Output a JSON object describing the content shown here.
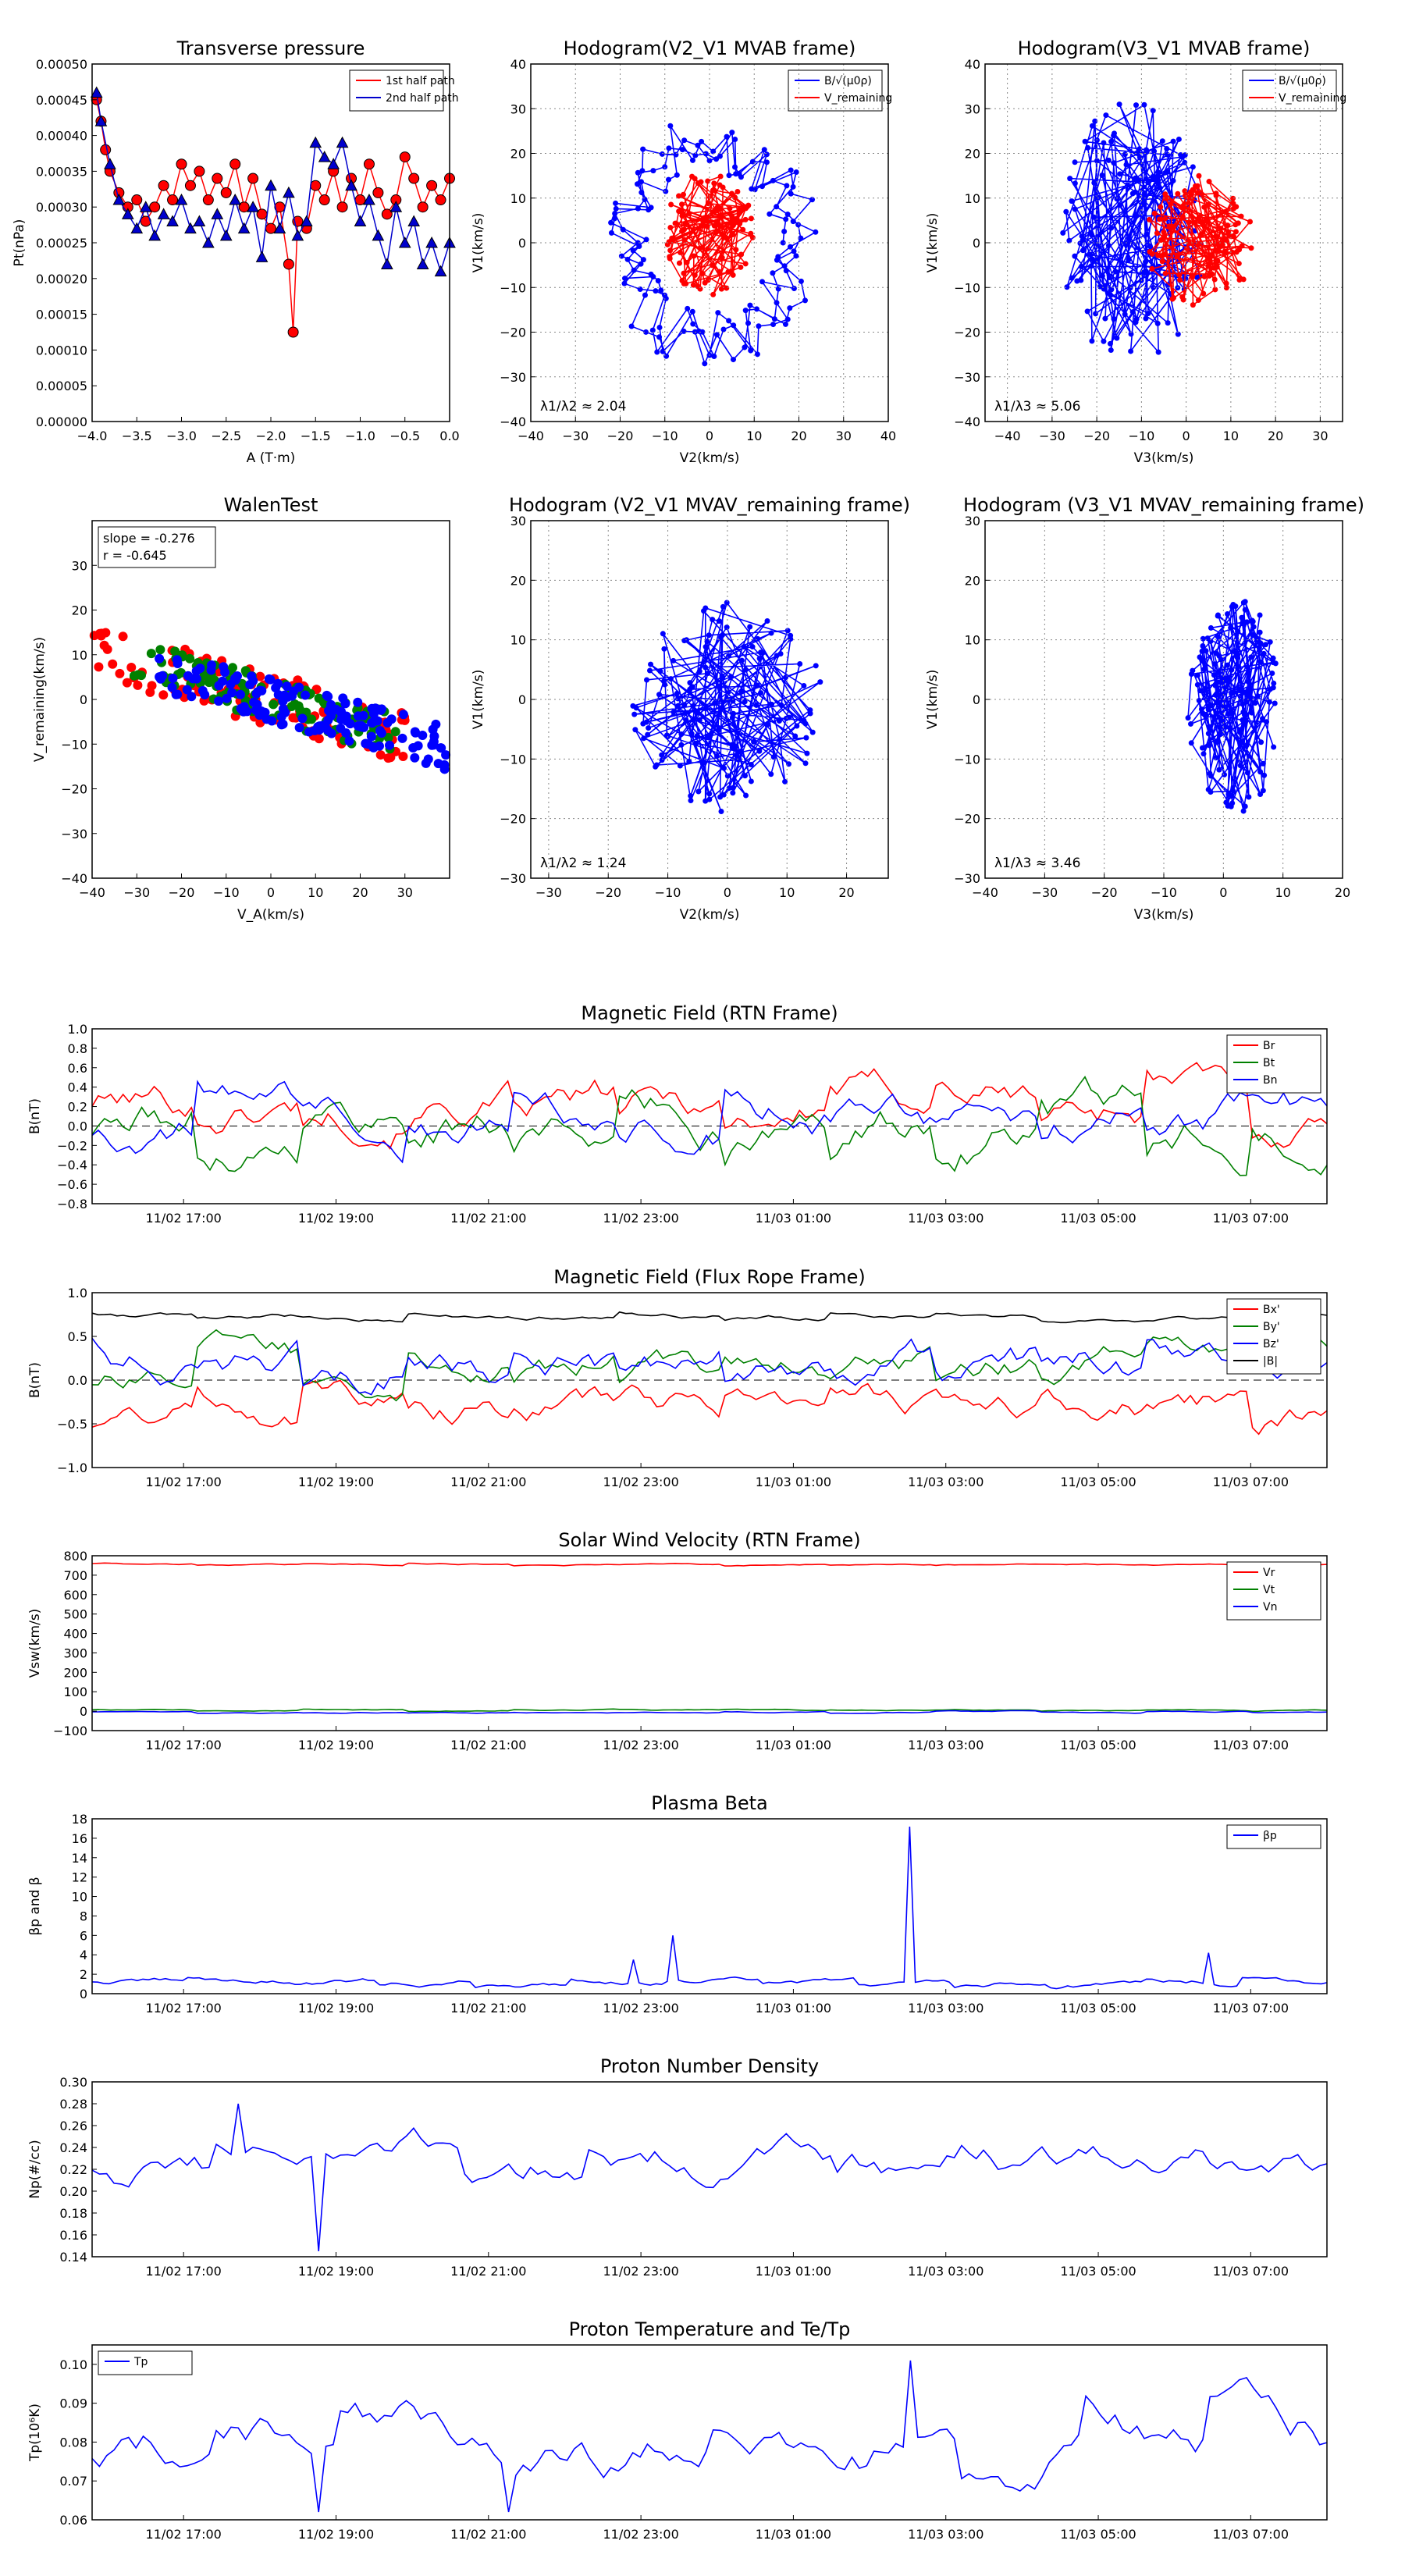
{
  "chart_data": [
    {
      "id": "p1",
      "type": "line",
      "title": "Transverse pressure",
      "xlabel": "A (T·m)",
      "ylabel": "Pt(nPa)",
      "xlim": [
        -4.0,
        0.0
      ],
      "ylim": [
        0.0,
        0.0005
      ],
      "xticks": [
        -4.0,
        -3.5,
        -3.0,
        -2.5,
        -2.0,
        -1.5,
        -1.0,
        -0.5,
        0.0
      ],
      "xtick_labels": [
        "−4.0",
        "−3.5",
        "−3.0",
        "−2.5",
        "−2.0",
        "−1.5",
        "−1.0",
        "−0.5",
        "0.0"
      ],
      "yticks": [
        0,
        5e-05,
        0.0001,
        0.00015,
        0.0002,
        0.00025,
        0.0003,
        0.00035,
        0.0004,
        0.00045,
        0.0005
      ],
      "ytick_labels": [
        "0.00000",
        "0.00005",
        "0.00010",
        "0.00015",
        "0.00020",
        "0.00025",
        "0.00030",
        "0.00035",
        "0.00040",
        "0.00045",
        "0.00050"
      ],
      "grid": false,
      "legend_position": "top-right",
      "series": [
        {
          "name": "1st half path",
          "color": "#ff0000",
          "marker": "circle",
          "x": [
            -3.95,
            -3.9,
            -3.85,
            -3.8,
            -3.7,
            -3.6,
            -3.5,
            -3.4,
            -3.3,
            -3.2,
            -3.1,
            -3.0,
            -2.9,
            -2.8,
            -2.7,
            -2.6,
            -2.5,
            -2.4,
            -2.3,
            -2.2,
            -2.1,
            -2.0,
            -1.9,
            -1.8,
            -1.75,
            -1.7,
            -1.6,
            -1.5,
            -1.4,
            -1.3,
            -1.2,
            -1.1,
            -1.0,
            -0.9,
            -0.8,
            -0.7,
            -0.6,
            -0.5,
            -0.4,
            -0.3,
            -0.2,
            -0.1,
            0.0
          ],
          "y": [
            0.00045,
            0.00042,
            0.00038,
            0.00035,
            0.00032,
            0.0003,
            0.00031,
            0.00028,
            0.0003,
            0.00033,
            0.00031,
            0.00036,
            0.00033,
            0.00035,
            0.00031,
            0.00034,
            0.00032,
            0.00036,
            0.0003,
            0.00034,
            0.00029,
            0.00027,
            0.0003,
            0.00022,
            0.000125,
            0.00028,
            0.00027,
            0.00033,
            0.00031,
            0.00035,
            0.0003,
            0.00034,
            0.00031,
            0.00036,
            0.00032,
            0.00029,
            0.00031,
            0.00037,
            0.00034,
            0.0003,
            0.00033,
            0.00031,
            0.00034
          ]
        },
        {
          "name": "2nd half path",
          "color": "#0000cc",
          "marker": "triangle",
          "x": [
            -3.95,
            -3.9,
            -3.8,
            -3.7,
            -3.6,
            -3.5,
            -3.4,
            -3.3,
            -3.2,
            -3.1,
            -3.0,
            -2.9,
            -2.8,
            -2.7,
            -2.6,
            -2.5,
            -2.4,
            -2.3,
            -2.2,
            -2.1,
            -2.0,
            -1.9,
            -1.8,
            -1.7,
            -1.6,
            -1.5,
            -1.4,
            -1.3,
            -1.2,
            -1.1,
            -1.0,
            -0.9,
            -0.8,
            -0.7,
            -0.6,
            -0.5,
            -0.4,
            -0.3,
            -0.2,
            -0.1,
            0.0
          ],
          "y": [
            0.00046,
            0.00042,
            0.00036,
            0.00031,
            0.00029,
            0.00027,
            0.0003,
            0.00026,
            0.00029,
            0.00028,
            0.00031,
            0.00027,
            0.00028,
            0.00025,
            0.00029,
            0.00026,
            0.00031,
            0.00027,
            0.0003,
            0.00023,
            0.00033,
            0.00027,
            0.00032,
            0.00026,
            0.00028,
            0.00039,
            0.00037,
            0.00036,
            0.00039,
            0.00033,
            0.00028,
            0.00031,
            0.00026,
            0.00022,
            0.0003,
            0.00025,
            0.00028,
            0.00022,
            0.00025,
            0.00021,
            0.00025
          ]
        }
      ]
    },
    {
      "id": "p2",
      "type": "line",
      "title": "Hodogram(V2_V1 MVAB frame)",
      "xlabel": "V2(km/s)",
      "ylabel": "V1(km/s)",
      "xlim": [
        -40,
        40
      ],
      "ylim": [
        -40,
        40
      ],
      "xticks": [
        -40,
        -30,
        -20,
        -10,
        0,
        10,
        20,
        30,
        40
      ],
      "yticks": [
        -40,
        -30,
        -20,
        -10,
        0,
        10,
        20,
        30,
        40
      ],
      "xtick_labels": [
        "−40",
        "−30",
        "−20",
        "−10",
        "0",
        "10",
        "20",
        "30",
        "40"
      ],
      "ytick_labels": [
        "−40",
        "−30",
        "−20",
        "−10",
        "0",
        "10",
        "20",
        "30",
        "40"
      ],
      "grid": true,
      "legend_position": "top-right",
      "annotation": "λ1/λ2 ≈ 2.04",
      "series": [
        {
          "name": "B/√(μ0ρ)",
          "color": "#0000ff",
          "kind": "loop",
          "cx": 0,
          "cy": 0,
          "rx": 25,
          "ry": 28,
          "n": 140,
          "seed": 11
        },
        {
          "name": "V_remaining",
          "color": "#ff0000",
          "kind": "cloud",
          "cx": 0,
          "cy": 2,
          "rx": 10,
          "ry": 14,
          "n": 110,
          "seed": 23
        }
      ]
    },
    {
      "id": "p3",
      "type": "line",
      "title": "Hodogram(V3_V1 MVAB frame)",
      "xlabel": "V3(km/s)",
      "ylabel": "V1(km/s)",
      "xlim": [
        -45,
        35
      ],
      "ylim": [
        -40,
        40
      ],
      "xticks": [
        -40,
        -30,
        -20,
        -10,
        0,
        10,
        20,
        30
      ],
      "yticks": [
        -40,
        -30,
        -20,
        -10,
        0,
        10,
        20,
        30,
        40
      ],
      "xtick_labels": [
        "−40",
        "−30",
        "−20",
        "−10",
        "0",
        "10",
        "20",
        "30"
      ],
      "ytick_labels": [
        "−40",
        "−30",
        "−20",
        "−10",
        "0",
        "10",
        "20",
        "30",
        "40"
      ],
      "grid": true,
      "legend_position": "top-right",
      "annotation": "λ1/λ3 ≈ 5.06",
      "series": [
        {
          "name": "B/√(μ0ρ)",
          "color": "#0000ff",
          "kind": "cloud",
          "cx": -12,
          "cy": 2,
          "rx": 16,
          "ry": 30,
          "n": 150,
          "seed": 31
        },
        {
          "name": "V_remaining",
          "color": "#ff0000",
          "kind": "cloud",
          "cx": 3,
          "cy": 0,
          "rx": 12,
          "ry": 15,
          "n": 110,
          "seed": 41
        }
      ]
    },
    {
      "id": "p4",
      "type": "scatter",
      "title": "WalenTest",
      "xlabel": "V_A(km/s)",
      "ylabel": "V_remaining(km/s)",
      "xlim": [
        -40,
        40
      ],
      "ylim": [
        -40,
        40
      ],
      "xticks": [
        -40,
        -30,
        -20,
        -10,
        0,
        10,
        20,
        30
      ],
      "yticks": [
        -40,
        -30,
        -20,
        -10,
        0,
        10,
        20,
        30
      ],
      "xtick_labels": [
        "−40",
        "−30",
        "−20",
        "−10",
        "0",
        "10",
        "20",
        "30"
      ],
      "ytick_labels": [
        "−40",
        "−30",
        "−20",
        "−10",
        "0",
        "10",
        "20",
        "30"
      ],
      "grid": false,
      "annotation_lines": [
        "slope = -0.276",
        "r = -0.645"
      ],
      "slope": -0.276,
      "series": [
        {
          "color": "#ff0000",
          "xrange": [
            -40,
            30
          ],
          "n": 110,
          "seed": 51,
          "spread": 6
        },
        {
          "color": "#008000",
          "xrange": [
            -32,
            28
          ],
          "n": 110,
          "seed": 61,
          "spread": 5
        },
        {
          "color": "#0000ff",
          "xrange": [
            -25,
            40
          ],
          "n": 150,
          "seed": 71,
          "spread": 5
        }
      ]
    },
    {
      "id": "p5",
      "type": "line",
      "title": "Hodogram (V2_V1 MVAV_remaining frame)",
      "xlabel": "V2(km/s)",
      "ylabel": "V1(km/s)",
      "xlim": [
        -33,
        27
      ],
      "ylim": [
        -30,
        30
      ],
      "xticks": [
        -30,
        -20,
        -10,
        0,
        10,
        20
      ],
      "yticks": [
        -30,
        -20,
        -10,
        0,
        10,
        20,
        30
      ],
      "xtick_labels": [
        "−30",
        "−20",
        "−10",
        "0",
        "10",
        "20"
      ],
      "ytick_labels": [
        "−30",
        "−20",
        "−10",
        "0",
        "10",
        "20",
        "30"
      ],
      "grid": true,
      "annotation": "λ1/λ2 ≈ 1.24",
      "series": [
        {
          "color": "#0000ff",
          "kind": "cloud",
          "cx": 0,
          "cy": -1,
          "rx": 16,
          "ry": 18,
          "n": 150,
          "seed": 81
        }
      ]
    },
    {
      "id": "p6",
      "type": "line",
      "title": "Hodogram (V3_V1 MVAV_remaining frame)",
      "xlabel": "V3(km/s)",
      "ylabel": "V1(km/s)",
      "xlim": [
        -40,
        20
      ],
      "ylim": [
        -30,
        30
      ],
      "xticks": [
        -40,
        -30,
        -20,
        -10,
        0,
        10,
        20
      ],
      "yticks": [
        -30,
        -20,
        -10,
        0,
        10,
        20,
        30
      ],
      "xtick_labels": [
        "−40",
        "−30",
        "−20",
        "−10",
        "0",
        "10",
        "20"
      ],
      "ytick_labels": [
        "−30",
        "−20",
        "−10",
        "0",
        "10",
        "20",
        "30"
      ],
      "grid": true,
      "annotation": "λ1/λ3 ≈ 3.46",
      "series": [
        {
          "color": "#0000ff",
          "kind": "cloud",
          "cx": 2,
          "cy": -1,
          "rx": 8,
          "ry": 18,
          "n": 150,
          "seed": 91
        }
      ]
    },
    {
      "id": "ts1",
      "type": "line",
      "title": "Magnetic Field (RTN Frame)",
      "ylabel": "B(nT)",
      "ylim": [
        -0.8,
        1.0
      ],
      "yticks": [
        -0.8,
        -0.6,
        -0.4,
        -0.2,
        0.0,
        0.2,
        0.4,
        0.6,
        0.8,
        1.0
      ],
      "ytick_labels": [
        "−0.8",
        "−0.6",
        "−0.4",
        "−0.2",
        "0.0",
        "0.2",
        "0.4",
        "0.6",
        "0.8",
        "1.0"
      ],
      "zero_line": true,
      "legend_position": "top-right",
      "series": [
        {
          "name": "Br",
          "color": "#ff0000",
          "base": 0.25,
          "amp": 0.4,
          "seed": 101,
          "n": 200
        },
        {
          "name": "Bt",
          "color": "#008000",
          "base": 0.05,
          "amp": 0.45,
          "seed": 111,
          "n": 200
        },
        {
          "name": "Bn",
          "color": "#0000ff",
          "base": 0.1,
          "amp": 0.4,
          "seed": 121,
          "n": 200
        }
      ]
    },
    {
      "id": "ts2",
      "type": "line",
      "title": "Magnetic Field (Flux Rope Frame)",
      "ylabel": "B(nT)",
      "ylim": [
        -1.0,
        1.0
      ],
      "yticks": [
        -1.0,
        -0.5,
        0.0,
        0.5,
        1.0
      ],
      "ytick_labels": [
        "−1.0",
        "−0.5",
        "0.0",
        "0.5",
        "1.0"
      ],
      "zero_line": true,
      "legend_position": "top-right",
      "series": [
        {
          "name": "Bx'",
          "color": "#ff0000",
          "base": -0.3,
          "amp": 0.35,
          "seed": 131,
          "n": 200
        },
        {
          "name": "By'",
          "color": "#008000",
          "base": 0.25,
          "amp": 0.35,
          "seed": 141,
          "n": 200
        },
        {
          "name": "Bz'",
          "color": "#0000ff",
          "base": 0.1,
          "amp": 0.4,
          "seed": 151,
          "n": 200
        },
        {
          "name": "|B|",
          "color": "#000000",
          "base": 0.72,
          "amp": 0.06,
          "seed": 161,
          "n": 200
        }
      ]
    },
    {
      "id": "ts3",
      "type": "line",
      "title": "Solar Wind Velocity (RTN Frame)",
      "ylabel": "Vsw(km/s)",
      "ylim": [
        -100,
        800
      ],
      "yticks": [
        -100,
        0,
        100,
        200,
        300,
        400,
        500,
        600,
        700,
        800
      ],
      "ytick_labels": [
        "−100",
        "0",
        "100",
        "200",
        "300",
        "400",
        "500",
        "600",
        "700",
        "800"
      ],
      "legend_position": "top-right",
      "series": [
        {
          "name": "Vr",
          "color": "#ff0000",
          "base": 755,
          "amp": 8,
          "seed": 171,
          "n": 200
        },
        {
          "name": "Vt",
          "color": "#008000",
          "base": 5,
          "amp": 6,
          "seed": 181,
          "n": 200
        },
        {
          "name": "Vn",
          "color": "#0000ff",
          "base": -5,
          "amp": 6,
          "seed": 191,
          "n": 200
        }
      ]
    },
    {
      "id": "ts4",
      "type": "line",
      "title": "Plasma Beta",
      "ylabel": "βp and β",
      "ylim": [
        0,
        18
      ],
      "yticks": [
        0,
        2,
        4,
        6,
        8,
        10,
        12,
        14,
        16,
        18
      ],
      "ytick_labels": [
        "0",
        "2",
        "4",
        "6",
        "8",
        "10",
        "12",
        "14",
        "16",
        "18"
      ],
      "legend_position": "top-right",
      "series": [
        {
          "name": "βp",
          "color": "#0000ff",
          "base": 1.2,
          "amp": 0.6,
          "seed": 201,
          "n": 220,
          "spikes": [
            [
              0.44,
              3.5
            ],
            [
              0.47,
              6.0
            ],
            [
              0.663,
              17.2
            ],
            [
              0.905,
              4.2
            ]
          ]
        }
      ]
    },
    {
      "id": "ts5",
      "type": "line",
      "title": "Proton Number Density",
      "ylabel": "Np(#/cc)",
      "ylim": [
        0.14,
        0.3
      ],
      "yticks": [
        0.14,
        0.16,
        0.18,
        0.2,
        0.22,
        0.24,
        0.26,
        0.28,
        0.3
      ],
      "ytick_labels": [
        "0.14",
        "0.16",
        "0.18",
        "0.20",
        "0.22",
        "0.24",
        "0.26",
        "0.28",
        "0.30"
      ],
      "series": [
        {
          "name": "Np",
          "color": "#0000ff",
          "base": 0.225,
          "amp": 0.035,
          "seed": 211,
          "n": 170,
          "spikes": [
            [
              0.185,
              0.145
            ],
            [
              0.12,
              0.28
            ]
          ]
        }
      ]
    },
    {
      "id": "ts6",
      "type": "line",
      "title": "Proton Temperature and Te/Tp",
      "ylabel": "Tp(10⁶K)",
      "ylim": [
        0.06,
        0.105
      ],
      "yticks": [
        0.06,
        0.07,
        0.08,
        0.09,
        0.1
      ],
      "ytick_labels": [
        "0.06",
        "0.07",
        "0.08",
        "0.09",
        "0.10"
      ],
      "legend_position": "top-left",
      "series": [
        {
          "name": "Tp",
          "color": "#0000ff",
          "base": 0.08,
          "amp": 0.012,
          "seed": 221,
          "n": 170,
          "spikes": [
            [
              0.66,
              0.101
            ],
            [
              0.185,
              0.062
            ],
            [
              0.335,
              0.062
            ]
          ]
        }
      ]
    }
  ],
  "time_axis": {
    "tick_labels": [
      "11/02 17:00",
      "11/02 19:00",
      "11/02 21:00",
      "11/02 23:00",
      "11/03 01:00",
      "11/03 03:00",
      "11/03 05:00",
      "11/03 07:00"
    ],
    "start": "11/02 15:48",
    "end": "11/03 08:00"
  }
}
